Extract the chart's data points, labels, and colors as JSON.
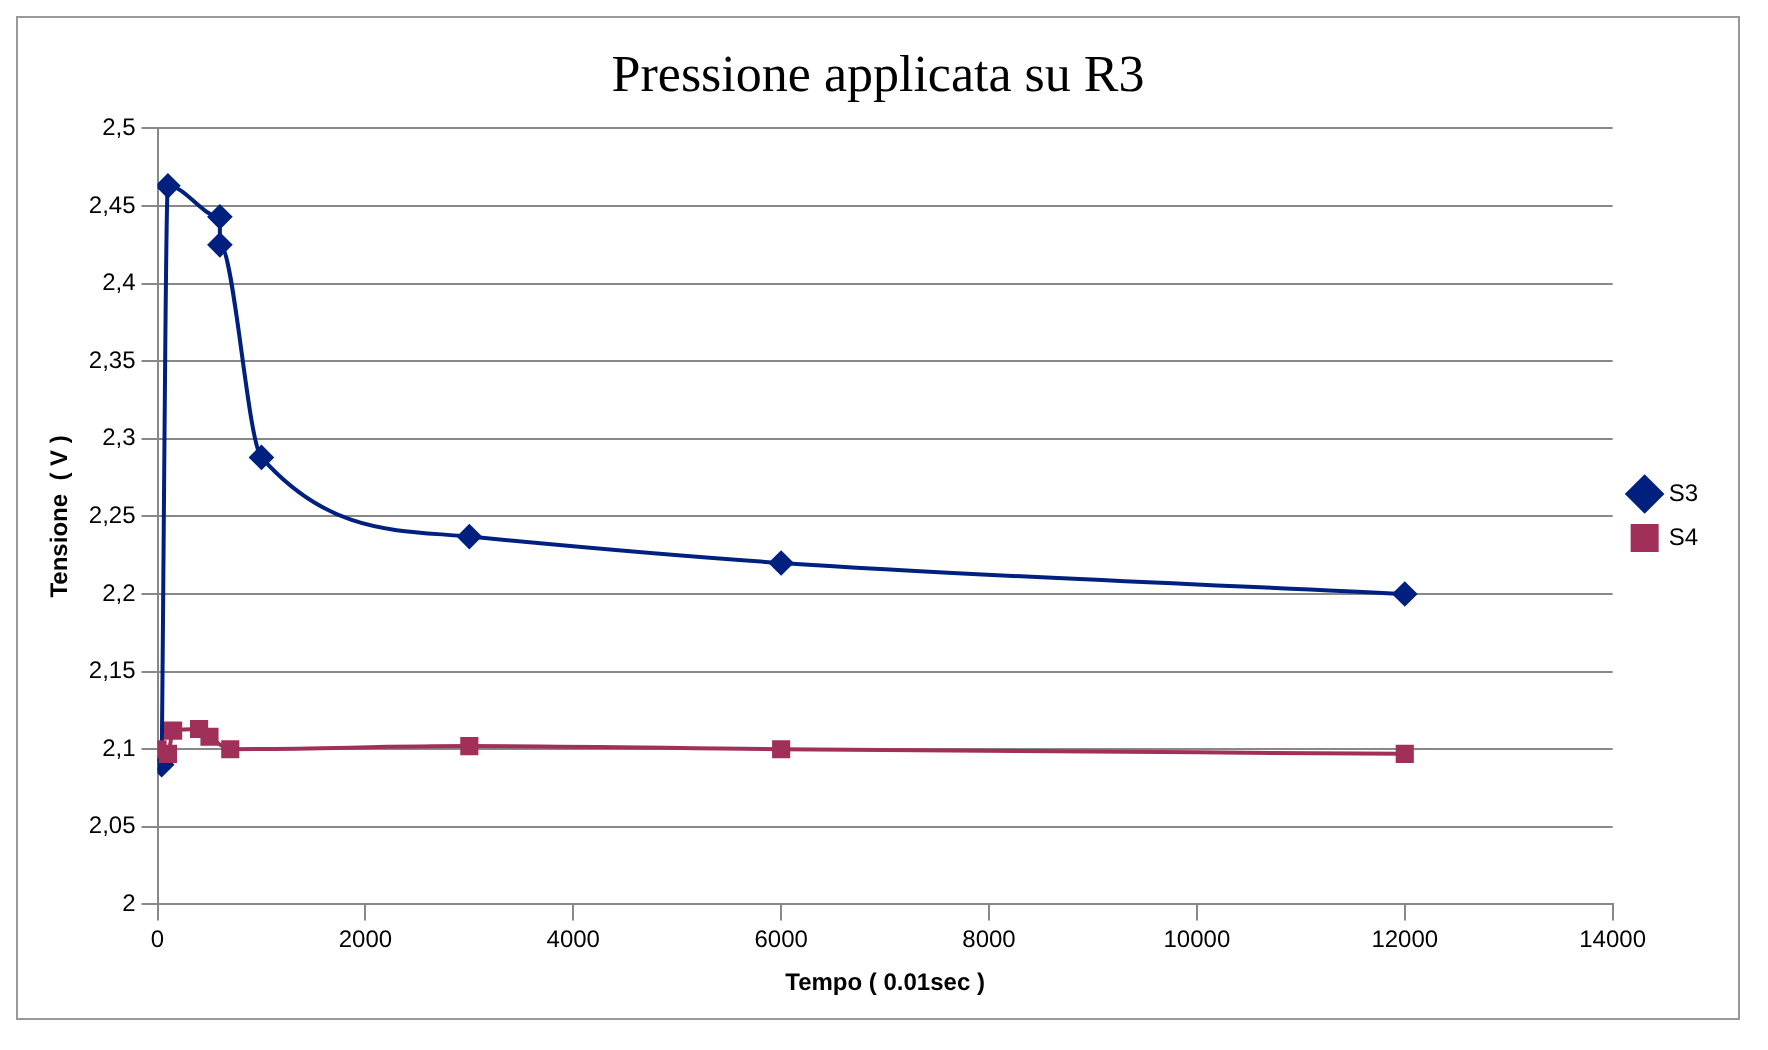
{
  "chart_data": {
    "type": "line",
    "title": "Pressione applicata su R3",
    "xlabel": "Tempo ( 0.01sec )",
    "ylabel": "Tensione  ( V )",
    "xlim": [
      0,
      14000
    ],
    "xticks": [
      0,
      2000,
      4000,
      6000,
      8000,
      10000,
      12000,
      14000
    ],
    "ylim": [
      2,
      2.5
    ],
    "yticks": [
      {
        "value": 2,
        "label": "2"
      },
      {
        "value": 2.05,
        "label": "2,05"
      },
      {
        "value": 2.1,
        "label": "2,1"
      },
      {
        "value": 2.15,
        "label": "2,15"
      },
      {
        "value": 2.2,
        "label": "2,2"
      },
      {
        "value": 2.25,
        "label": "2,25"
      },
      {
        "value": 2.3,
        "label": "2,3"
      },
      {
        "value": 2.35,
        "label": "2,35"
      },
      {
        "value": 2.4,
        "label": "2,4"
      },
      {
        "value": 2.45,
        "label": "2,45"
      },
      {
        "value": 2.5,
        "label": "2,5"
      }
    ],
    "grid": "y",
    "legend": "right",
    "series": [
      {
        "name": "S3",
        "color": "#00207f",
        "marker": "diamond",
        "x": [
          40,
          100,
          600,
          600,
          1000,
          3000,
          6000,
          12000
        ],
        "values": [
          2.09,
          2.463,
          2.443,
          2.425,
          2.288,
          2.237,
          2.22,
          2.2
        ]
      },
      {
        "name": "S4",
        "color": "#a0305a",
        "marker": "square",
        "x": [
          0,
          100,
          150,
          400,
          500,
          700,
          3000,
          6000,
          12000
        ],
        "values": [
          2.1,
          2.097,
          2.112,
          2.113,
          2.108,
          2.1,
          2.102,
          2.1,
          2.097
        ]
      }
    ]
  }
}
